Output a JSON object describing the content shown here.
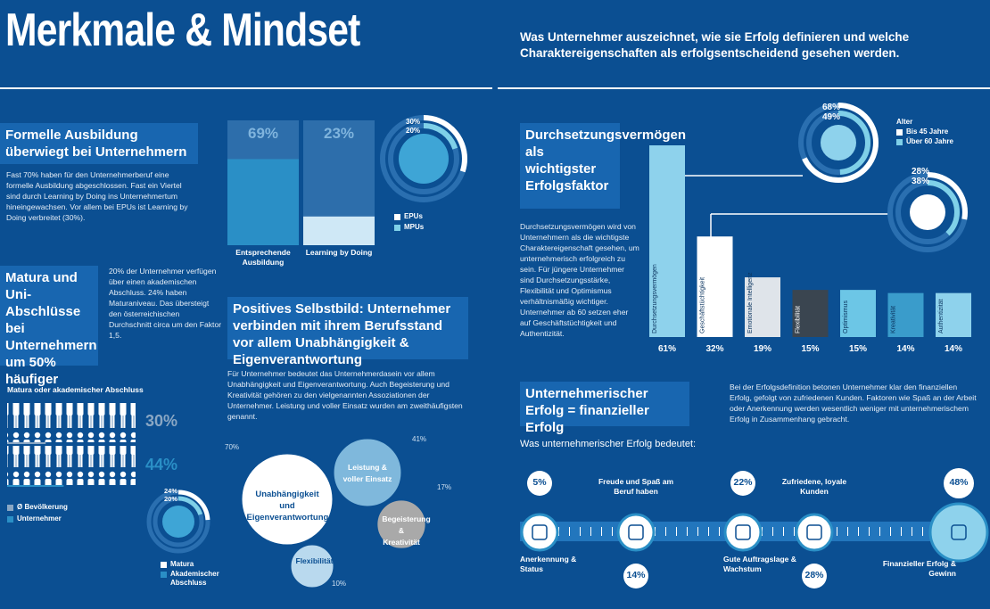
{
  "header": {
    "title": "Merkmale & Mindset",
    "subtitle": "Was Unternehmer auszeichnet, wie sie Erfolg definieren und welche Charaktereigenschaften als erfolgsentscheidend gesehen werden."
  },
  "ausbildung": {
    "heading": "Formelle Ausbildung überwiegt bei Unternehmern",
    "text": "Fast 70% haben für den Unternehmerberuf eine formelle Ausbildung abgeschlossen. Fast ein Viertel sind durch Learning by Doing ins Unternehmertum hineingewachsen. Vor allem bei EPUs ist Learning by Doing verbreitet (30%).",
    "bars": [
      {
        "label": "Entsprechende Ausbildung",
        "value": 69,
        "value_label": "69%"
      },
      {
        "label": "Learning by Doing",
        "value": 23,
        "value_label": "23%"
      }
    ],
    "ring": {
      "values": [
        30,
        20
      ],
      "value_labels": [
        "30%",
        "20%"
      ],
      "legend": [
        "EPUs",
        "MPUs"
      ]
    }
  },
  "matura": {
    "heading": "Matura und Uni-Abschlüsse bei Unternehmern um 50% häufiger",
    "text": "20% der Unternehmer verfügen über einen akademischen Abschluss. 24% haben Maturaniveau. Das übersteigt den österreichischen Durchschnitt circa um den Faktor 1,5.",
    "chart_title": "Matura oder akademischer Abschluss",
    "rows": [
      {
        "label": "Ø Bevölkerung",
        "value": 30,
        "value_label": "30%"
      },
      {
        "label": "Unternehmer",
        "value": 44,
        "value_label": "44%"
      }
    ],
    "ring": {
      "values": [
        24,
        20
      ],
      "value_labels": [
        "24%",
        "20%"
      ],
      "legend": [
        "Matura",
        "Akademischer Abschluss"
      ]
    }
  },
  "selbstbild": {
    "heading": "Positives Selbstbild: Unternehmer verbinden mit ihrem Berufsstand vor allem Unabhängigkeit & Eigenverantwortung",
    "text": "Für Unternehmer bedeutet das Unternehmerdasein vor allem Unabhängigkeit und Eigenverantwortung. Auch Begeisterung und Kreativität gehören zu den vielgenannten Assoziationen der Unternehmer. Leistung und voller Einsatz wurden am zweithäufigsten genannt.",
    "bubbles": [
      {
        "label": "Unabhängigkeit und Eigenverantwortung",
        "value": 70,
        "value_label": "70%"
      },
      {
        "label": "Leistung & voller Einsatz",
        "value": 41,
        "value_label": "41%"
      },
      {
        "label": "Begeisterung & Kreativität",
        "value": 17,
        "value_label": "17%"
      },
      {
        "label": "Flexibilität",
        "value": 10,
        "value_label": "10%"
      }
    ]
  },
  "durchsetzung": {
    "heading": "Durchsetzungsvermögen als wichtigster Erfolgsfaktor",
    "text": "Durchsetzungsvermögen wird von Unternehmern als die wichtigste Charaktereigenschaft gesehen, um unternehmerisch erfolgreich zu sein. Für jüngere Unternehmer sind Durchsetzungsstärke, Flexibilität und Optimismus verhältnismäßig wichtiger. Unternehmer ab 60 setzen eher auf Geschäftstüchtigkeit und Authentizität.",
    "legend_title": "Alter",
    "legend": [
      "Bis 45 Jahre",
      "Über 60 Jahre"
    ],
    "rings": [
      {
        "values": [
          68,
          49
        ],
        "value_labels": [
          "68%",
          "49%"
        ]
      },
      {
        "values": [
          28,
          38
        ],
        "value_labels": [
          "28%",
          "38%"
        ]
      }
    ],
    "categories": [
      "Durchsetzungsvermögen",
      "Geschäftstüchtigkeit",
      "Emotionale Intelligenz",
      "Flexibilität",
      "Optimismus",
      "Kreativität",
      "Authentizität"
    ],
    "values": [
      61,
      32,
      19,
      15,
      15,
      14,
      14
    ],
    "value_labels": [
      "61%",
      "32%",
      "19%",
      "15%",
      "15%",
      "14%",
      "14%"
    ],
    "colors": [
      "#8ed2ec",
      "#ffffff",
      "#dfe4ea",
      "#3a4550",
      "#6cc6e6",
      "#3a9ccb",
      "#8ed2ec"
    ]
  },
  "erfolg": {
    "heading": "Unternehmerischer Erfolg = finanzieller Erfolg",
    "text": "Bei der Erfolgsdefinition betonen Unternehmer klar den finanziellen Erfolg, gefolgt von zufriedenen Kunden. Faktoren wie Spaß an der Arbeit oder Anerkennung werden wesentlich weniger mit unternehmerischem Erfolg in Zusammenhang gebracht.",
    "subheading": "Was unternehmerischer Erfolg bedeutet:",
    "items": [
      {
        "label": "Anerkennung & Status",
        "value": 5,
        "value_label": "5%"
      },
      {
        "label": "Freude und Spaß am Beruf haben",
        "value": 14,
        "value_label": "14%"
      },
      {
        "label": "Gute Auftragslage & Wachstum",
        "value": 22,
        "value_label": "22%"
      },
      {
        "label": "Zufriedene, loyale Kunden",
        "value": 28,
        "value_label": "28%"
      },
      {
        "label": "Finanzieller Erfolg & Gewinn",
        "value": 48,
        "value_label": "48%"
      }
    ]
  }
}
